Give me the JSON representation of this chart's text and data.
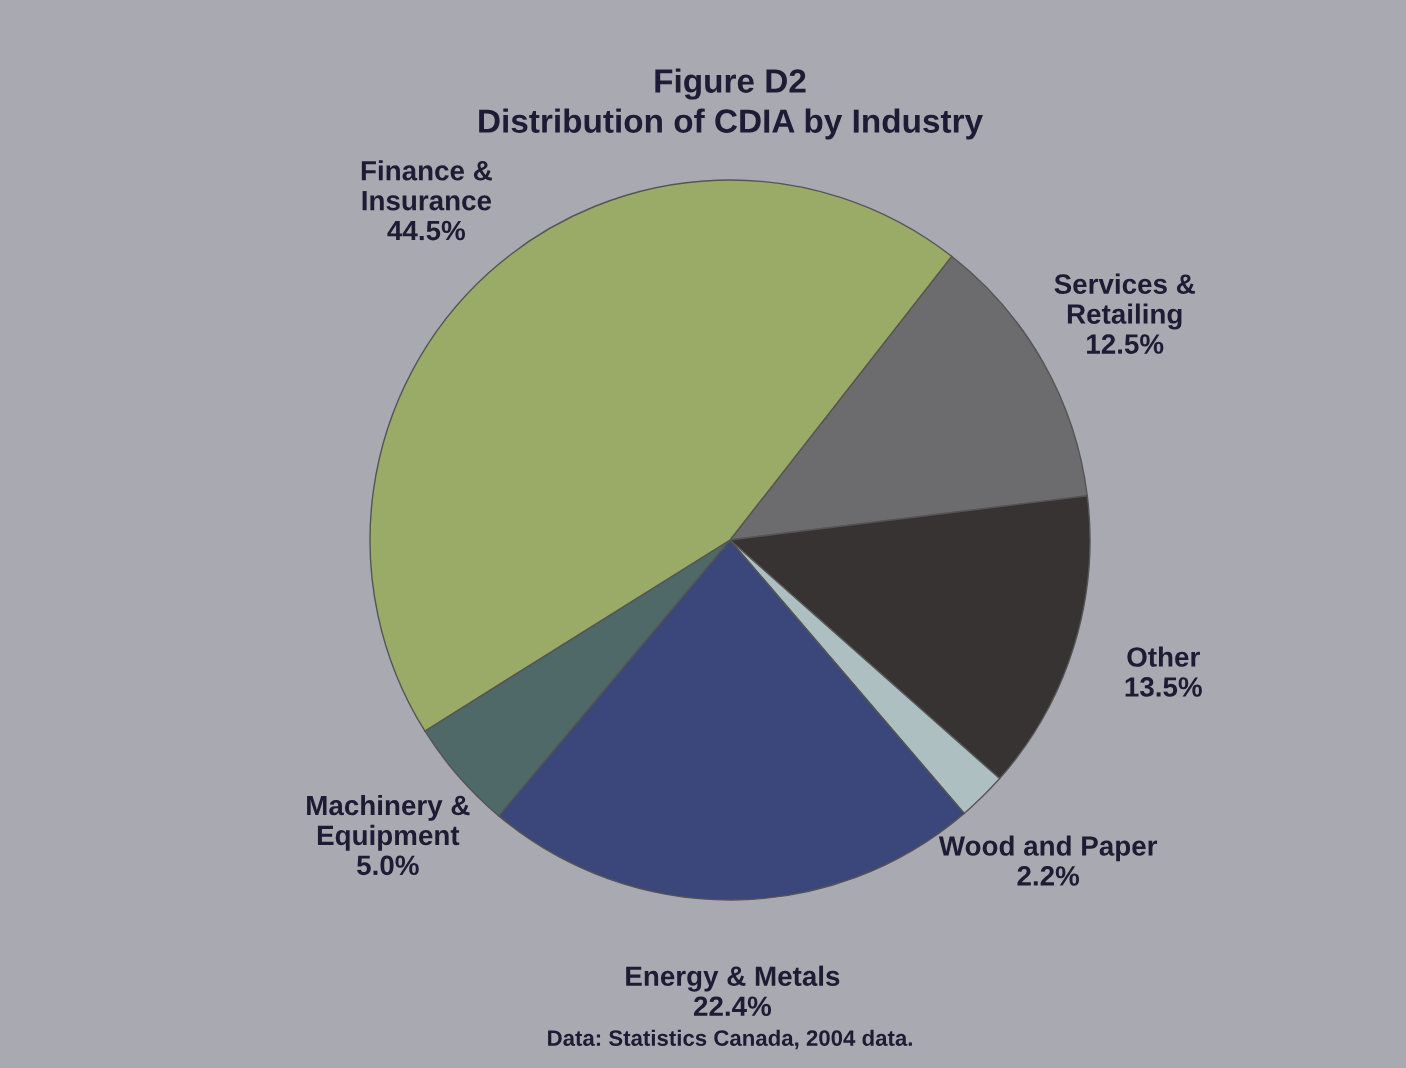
{
  "chart_data": {
    "type": "pie",
    "title": "Figure D2",
    "subtitle": "Distribution of CDIA by Industry",
    "categories": [
      "Services &\nRetailing",
      "Other",
      "Wood and Paper",
      "Energy & Metals",
      "Machinery &\nEquipment",
      "Finance &\nInsurance"
    ],
    "values": [
      12.5,
      13.5,
      2.2,
      22.4,
      5.0,
      44.5
    ],
    "colors": [
      "#6c6c6e",
      "#363332",
      "#aebfc2",
      "#3b477a",
      "#4e6968",
      "#9aab68"
    ],
    "value_labels": [
      "12.5%",
      "13.5%",
      "2.2%",
      "22.4%",
      "5.0%",
      "44.5%"
    ],
    "annotations": [
      "Data: Statistics Canada, 2004 data."
    ]
  }
}
